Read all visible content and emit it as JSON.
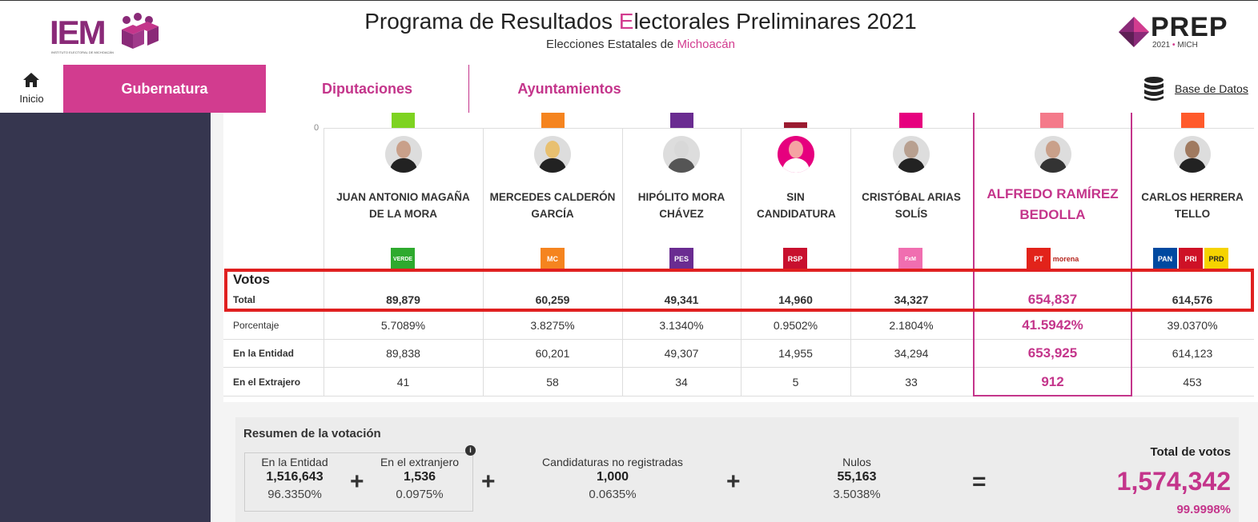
{
  "header": {
    "iem_logo": "IEM",
    "iem_sub": "INSTITUTO ELECTORAL DE MICHOACÁN",
    "title_pre": "Programa de Resultados ",
    "title_e": "E",
    "title_post": "lectorales Preliminares 2021",
    "subtitle_pre": "Elecciones Estatales de ",
    "subtitle_state": "Michoacán",
    "prep_logo": "PREP",
    "prep_year": "2021",
    "prep_dot": "•",
    "prep_state": "MICH"
  },
  "nav": {
    "home_label": "Inicio",
    "tabs": [
      {
        "label": "Gubernatura",
        "active": true
      },
      {
        "label": "Diputaciones",
        "active": false
      },
      {
        "label": "Ayuntamientos",
        "active": false
      }
    ],
    "database_label": "Base de Datos"
  },
  "chart": {
    "zero_label": "0"
  },
  "candidates": [
    {
      "name": "JUAN ANTONIO MAGAÑA DE LA MORA",
      "bar_color": "#7ed321",
      "parties": [
        {
          "label": "VERDE",
          "color": "#2eaa2e"
        }
      ],
      "total": "89,879",
      "pct": "5.7089%",
      "entidad": "89,838",
      "extranjero": "41"
    },
    {
      "name": "MERCEDES CALDERÓN GARCÍA",
      "bar_color": "#f5841f",
      "parties": [
        {
          "label": "MC",
          "color": "#f5841f"
        }
      ],
      "total": "60,259",
      "pct": "3.8275%",
      "entidad": "60,201",
      "extranjero": "58"
    },
    {
      "name": "HIPÓLITO MORA CHÁVEZ",
      "bar_color": "#6a2c91",
      "parties": [
        {
          "label": "PES",
          "color": "#6a2c91"
        }
      ],
      "total": "49,341",
      "pct": "3.1340%",
      "entidad": "49,307",
      "extranjero": "34"
    },
    {
      "name": "SIN CANDIDATURA",
      "bar_color": "#9b1b30",
      "parties": [
        {
          "label": "RSP",
          "color": "#c8102e"
        }
      ],
      "total": "14,960",
      "pct": "0.9502%",
      "entidad": "14,955",
      "extranjero": "5"
    },
    {
      "name": "CRISTÓBAL ARIAS SOLÍS",
      "bar_color": "#e6007e",
      "parties": [
        {
          "label": "FxM",
          "color": "#f06eb0"
        }
      ],
      "total": "34,327",
      "pct": "2.1804%",
      "entidad": "34,294",
      "extranjero": "33"
    },
    {
      "name": "ALFREDO RAMÍREZ BEDOLLA",
      "bar_color": "#f47a8a",
      "parties": [
        {
          "label": "PT",
          "color": "#e2231a"
        },
        {
          "label": "morena",
          "color": "#ffffff"
        }
      ],
      "total": "654,837",
      "pct": "41.5942%",
      "entidad": "653,925",
      "extranjero": "912"
    },
    {
      "name": "CARLOS HERRERA TELLO",
      "bar_color": "#ff5a2b",
      "parties": [
        {
          "label": "PAN",
          "color": "#0049a0"
        },
        {
          "label": "PRI",
          "color": "#ce1126"
        },
        {
          "label": "PRD",
          "color": "#f6d300"
        }
      ],
      "total": "614,576",
      "pct": "39.0370%",
      "entidad": "614,123",
      "extranjero": "453"
    }
  ],
  "rows": {
    "votos": "Votos",
    "total": "Total",
    "porcentaje": "Porcentaje",
    "entidad": "En la Entidad",
    "extranjero": "En el Extrajero"
  },
  "resumen": {
    "title": "Resumen de la votación",
    "info": "i",
    "entidad": {
      "label": "En la Entidad",
      "value": "1,516,643",
      "pct": "96.3350%"
    },
    "extranjero": {
      "label": "En el extranjero",
      "value": "1,536",
      "pct": "0.0975%"
    },
    "no_registradas": {
      "label": "Candidaturas no registradas",
      "value": "1,000",
      "pct": "0.0635%"
    },
    "nulos": {
      "label": "Nulos",
      "value": "55,163",
      "pct": "3.5038%"
    },
    "total": {
      "label": "Total de votos",
      "value": "1,574,342",
      "pct": "99.9998%"
    },
    "plus": "+",
    "equals": "="
  }
}
